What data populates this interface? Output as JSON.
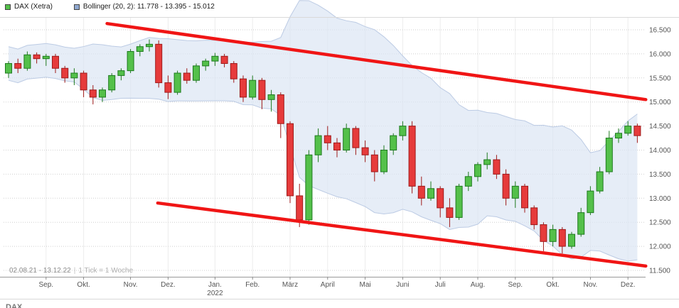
{
  "legend": {
    "dax_label": "DAX (Xetra)",
    "bollinger_label": "Bollinger (20, 2): 11.778 - 13.395 - 15.012",
    "dax_color": "#54c04a",
    "bollinger_color": "#8fa8d0"
  },
  "footer": {
    "range": "02.08.21 - 13.12.22",
    "separator": "|",
    "tick_info": "1 Tick = 1 Woche",
    "partial_text": "DAX"
  },
  "chart_data": {
    "type": "candlestick",
    "title": "DAX (Xetra)",
    "x_range_label": "02.08.21 - 13.12.22",
    "tick_interval": "1 Tick = 1 Woche",
    "ylim": [
      11367,
      16751
    ],
    "grid": true,
    "legend_position": "top-left",
    "bollinger": {
      "period": 20,
      "deviation": 2,
      "last_lower": 11778,
      "last_middle": 13395,
      "last_upper": 15012
    },
    "candles_format": [
      "open",
      "high",
      "low",
      "close"
    ],
    "candles": [
      [
        15600,
        15850,
        15500,
        15800
      ],
      [
        15800,
        15900,
        15600,
        15700
      ],
      [
        15700,
        16050,
        15650,
        15980
      ],
      [
        15980,
        16030,
        15800,
        15900
      ],
      [
        15900,
        16000,
        15750,
        15950
      ],
      [
        15950,
        16000,
        15600,
        15700
      ],
      [
        15700,
        15750,
        15400,
        15500
      ],
      [
        15500,
        15700,
        15350,
        15600
      ],
      [
        15600,
        15650,
        15100,
        15250
      ],
      [
        15250,
        15350,
        14950,
        15100
      ],
      [
        15100,
        15300,
        15000,
        15250
      ],
      [
        15250,
        15600,
        15200,
        15550
      ],
      [
        15550,
        15700,
        15450,
        15650
      ],
      [
        15650,
        16100,
        15600,
        16050
      ],
      [
        16050,
        16200,
        15950,
        16150
      ],
      [
        16150,
        16300,
        16050,
        16200
      ],
      [
        16200,
        16280,
        15300,
        15400
      ],
      [
        15400,
        15550,
        15060,
        15200
      ],
      [
        15200,
        15650,
        15150,
        15600
      ],
      [
        15600,
        15700,
        15380,
        15450
      ],
      [
        15450,
        15800,
        15400,
        15750
      ],
      [
        15750,
        15900,
        15650,
        15850
      ],
      [
        15850,
        16020,
        15750,
        15950
      ],
      [
        15950,
        16000,
        15720,
        15800
      ],
      [
        15800,
        15850,
        15400,
        15480
      ],
      [
        15480,
        15550,
        15000,
        15100
      ],
      [
        15100,
        15550,
        15050,
        15450
      ],
      [
        15450,
        15500,
        14850,
        15050
      ],
      [
        15050,
        15250,
        14800,
        15150
      ],
      [
        15150,
        15200,
        14250,
        14550
      ],
      [
        14550,
        14600,
        12900,
        13050
      ],
      [
        13050,
        13300,
        12400,
        12550
      ],
      [
        12550,
        14000,
        12450,
        13900
      ],
      [
        13900,
        14450,
        13750,
        14300
      ],
      [
        14300,
        14500,
        14000,
        14150
      ],
      [
        14150,
        14250,
        13850,
        14000
      ],
      [
        14000,
        14550,
        13950,
        14450
      ],
      [
        14450,
        14500,
        13900,
        14050
      ],
      [
        14050,
        14200,
        13750,
        13900
      ],
      [
        13900,
        14000,
        13350,
        13550
      ],
      [
        13550,
        14100,
        13500,
        14000
      ],
      [
        14000,
        14350,
        13900,
        14300
      ],
      [
        14300,
        14600,
        14200,
        14500
      ],
      [
        14500,
        14600,
        13100,
        13250
      ],
      [
        13250,
        13450,
        12850,
        13000
      ],
      [
        13000,
        13350,
        12950,
        13200
      ],
      [
        13200,
        13250,
        12600,
        12800
      ],
      [
        12800,
        13000,
        12400,
        12600
      ],
      [
        12600,
        13300,
        12550,
        13250
      ],
      [
        13250,
        13550,
        13150,
        13450
      ],
      [
        13450,
        13750,
        13350,
        13700
      ],
      [
        13700,
        13950,
        13600,
        13800
      ],
      [
        13800,
        13900,
        13400,
        13500
      ],
      [
        13500,
        13600,
        12850,
        13000
      ],
      [
        13000,
        13350,
        12800,
        13250
      ],
      [
        13250,
        13300,
        12700,
        12800
      ],
      [
        12800,
        12850,
        12350,
        12450
      ],
      [
        12450,
        12500,
        11900,
        12100
      ],
      [
        12100,
        12450,
        12000,
        12350
      ],
      [
        12350,
        12400,
        11850,
        12000
      ],
      [
        12000,
        12300,
        11950,
        12250
      ],
      [
        12250,
        12800,
        12200,
        12700
      ],
      [
        12700,
        13250,
        12650,
        13150
      ],
      [
        13150,
        13650,
        13100,
        13550
      ],
      [
        13550,
        14400,
        13500,
        14250
      ],
      [
        14250,
        14450,
        14150,
        14350
      ],
      [
        14350,
        14600,
        14300,
        14500
      ],
      [
        14500,
        14550,
        14150,
        14300
      ]
    ],
    "y_ticks": [
      {
        "value": 16500,
        "label": "16.500"
      },
      {
        "value": 16000,
        "label": "16.000"
      },
      {
        "value": 15500,
        "label": "15.500"
      },
      {
        "value": 15000,
        "label": "15.000"
      },
      {
        "value": 14500,
        "label": "14.500"
      },
      {
        "value": 14000,
        "label": "14.000"
      },
      {
        "value": 13500,
        "label": "13.500"
      },
      {
        "value": 13000,
        "label": "13.000"
      },
      {
        "value": 12500,
        "label": "12.500"
      },
      {
        "value": 12000,
        "label": "12.000"
      },
      {
        "value": 11500,
        "label": "11.500"
      }
    ],
    "x_ticks": [
      {
        "label": "Sep.",
        "week": 4
      },
      {
        "label": "Okt.",
        "week": 8
      },
      {
        "label": "Nov.",
        "week": 13
      },
      {
        "label": "Dez.",
        "week": 17
      },
      {
        "label": "Jan.",
        "week": 22
      },
      {
        "label": "Feb.",
        "week": 26
      },
      {
        "label": "März",
        "week": 30
      },
      {
        "label": "April",
        "week": 34
      },
      {
        "label": "Mai",
        "week": 38
      },
      {
        "label": "Juni",
        "week": 42
      },
      {
        "label": "Juli",
        "week": 46
      },
      {
        "label": "Aug.",
        "week": 50
      },
      {
        "label": "Sep.",
        "week": 54
      },
      {
        "label": "Okt.",
        "week": 58
      },
      {
        "label": "Nov.",
        "week": 62
      },
      {
        "label": "Dez.",
        "week": 66
      }
    ],
    "year_label": {
      "text": "2022",
      "week": 22
    },
    "trendlines": [
      {
        "week1": 10.5,
        "value1": 16630,
        "week2": 67.9,
        "value2": 15050
      },
      {
        "week1": 15.9,
        "value1": 12900,
        "week2": 67.9,
        "value2": 11590
      }
    ],
    "colors": {
      "up_fill": "#54c04a",
      "up_border": "#1e7a1e",
      "down_fill": "#e63b3b",
      "down_border": "#9e1a1a",
      "band_fill": "#dbe5f3",
      "band_edge": "#bccbe4",
      "trend": "#f01515",
      "grid_h": "#cfcfcf",
      "grid_v": "#ececec",
      "axis_text": "#555555",
      "frame": "#d9d9d9"
    }
  }
}
